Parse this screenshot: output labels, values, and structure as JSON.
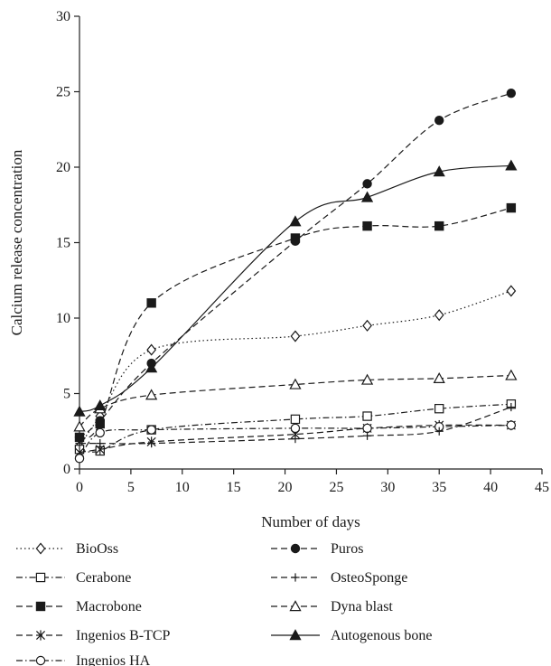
{
  "chart_data": {
    "type": "line",
    "xlabel": "Number of days",
    "ylabel": "Calcium release concentration",
    "xlim": [
      0,
      45
    ],
    "ylim": [
      0,
      30
    ],
    "xticks": [
      0,
      5,
      10,
      15,
      20,
      25,
      30,
      35,
      40,
      45
    ],
    "yticks": [
      0,
      5,
      10,
      15,
      20,
      25,
      30
    ],
    "grid": false,
    "legend_position": "bottom",
    "x": [
      0,
      2,
      7,
      21,
      28,
      35,
      42
    ],
    "series": [
      {
        "name": "BioOss",
        "values": [
          1.5,
          3.5,
          7.9,
          8.8,
          9.5,
          10.2,
          11.8
        ],
        "marker": "diamond-open",
        "dash": "dotted"
      },
      {
        "name": "Cerabone",
        "values": [
          1.3,
          1.2,
          2.6,
          3.3,
          3.5,
          4.0,
          4.3
        ],
        "marker": "square-open",
        "dash": "dashdot"
      },
      {
        "name": "Macrobone",
        "values": [
          2.1,
          3.0,
          11.0,
          15.3,
          16.1,
          16.1,
          17.3
        ],
        "marker": "square-filled",
        "dash": "dashed"
      },
      {
        "name": "Ingenios B-TCP",
        "values": [
          1.1,
          1.3,
          1.8,
          2.3,
          2.7,
          2.9,
          2.9
        ],
        "marker": "asterisk",
        "dash": "dashed"
      },
      {
        "name": "Ingenios HA",
        "values": [
          0.7,
          2.4,
          2.6,
          2.7,
          2.7,
          2.8,
          2.9
        ],
        "marker": "circle-open",
        "dash": "dashdot"
      },
      {
        "name": "Puros",
        "values": [
          2.1,
          3.2,
          7.0,
          15.1,
          18.9,
          23.1,
          24.9
        ],
        "marker": "circle-filled",
        "dash": "dashed"
      },
      {
        "name": "OsteoSponge",
        "values": [
          1.7,
          1.7,
          1.7,
          2.0,
          2.2,
          2.5,
          4.1
        ],
        "marker": "plus",
        "dash": "dashed"
      },
      {
        "name": "Dyna blast",
        "values": [
          2.8,
          4.0,
          4.9,
          5.6,
          5.9,
          6.0,
          6.2
        ],
        "marker": "triangle-open",
        "dash": "dashed"
      },
      {
        "name": "Autogenous bone",
        "values": [
          3.8,
          4.2,
          6.7,
          16.4,
          18.0,
          19.7,
          20.1
        ],
        "marker": "triangle-filled",
        "dash": "solid"
      }
    ]
  },
  "style": {
    "ink": "#1a1a1a",
    "axis_color": "#222222"
  }
}
